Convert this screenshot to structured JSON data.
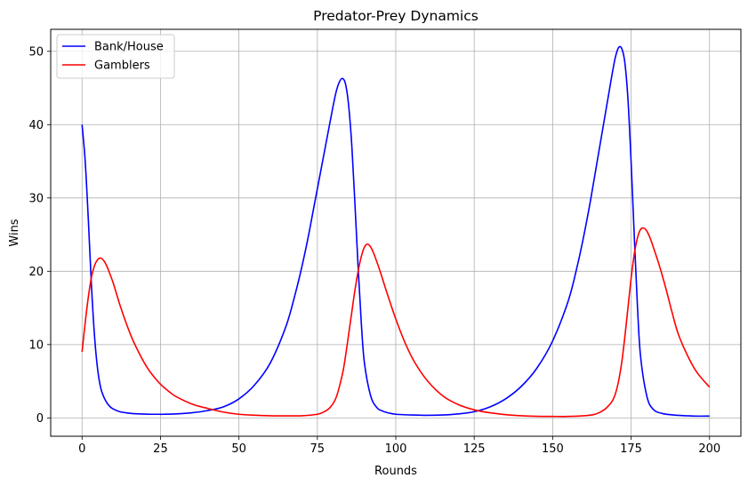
{
  "chart_data": {
    "type": "line",
    "title": "Predator-Prey Dynamics",
    "xlabel": "Rounds",
    "ylabel": "Wins",
    "xlim": [
      -10,
      210
    ],
    "ylim": [
      -2.5,
      53
    ],
    "xticks": [
      0,
      25,
      50,
      75,
      100,
      125,
      150,
      175,
      200
    ],
    "yticks": [
      0,
      10,
      20,
      30,
      40,
      50
    ],
    "grid": true,
    "legend_position": "top-left",
    "series": [
      {
        "name": "Bank/House",
        "color": "#0000ff",
        "x": [
          0,
          1,
          2,
          3,
          4,
          5,
          6,
          7,
          8,
          9,
          10,
          12,
          14,
          16,
          18,
          20,
          22,
          24,
          26,
          30,
          35,
          40,
          45,
          50,
          55,
          60,
          65,
          68,
          70,
          72,
          74,
          76,
          78,
          80,
          81,
          82,
          83,
          84,
          85,
          86,
          87,
          88,
          89,
          90,
          92,
          94,
          96,
          98,
          100,
          105,
          110,
          115,
          120,
          125,
          130,
          135,
          140,
          145,
          150,
          155,
          158,
          160,
          162,
          164,
          166,
          168,
          169,
          170,
          171,
          172,
          173,
          174,
          175,
          176,
          177,
          178,
          180,
          182,
          185,
          190,
          195,
          200
        ],
        "y": [
          40,
          35,
          27,
          18,
          11,
          6.5,
          4,
          2.8,
          2,
          1.5,
          1.2,
          0.85,
          0.7,
          0.6,
          0.55,
          0.52,
          0.5,
          0.5,
          0.5,
          0.55,
          0.7,
          1.0,
          1.5,
          2.6,
          4.5,
          7.5,
          12.5,
          17,
          20.5,
          24.5,
          29,
          33.5,
          38,
          42.5,
          44.5,
          45.8,
          46.3,
          45.5,
          42.5,
          37,
          29,
          20.5,
          13,
          7.5,
          3,
          1.4,
          0.9,
          0.65,
          0.5,
          0.4,
          0.35,
          0.4,
          0.55,
          0.85,
          1.5,
          2.6,
          4.3,
          6.8,
          10.5,
          16,
          21,
          25,
          29.5,
          34.5,
          39.5,
          44.5,
          47,
          49.2,
          50.5,
          50.4,
          48.5,
          43.5,
          35,
          25,
          15.5,
          8.5,
          3,
          1.2,
          0.6,
          0.35,
          0.25,
          0.25
        ]
      },
      {
        "name": "Gamblers",
        "color": "#ff0000",
        "x": [
          0,
          1,
          2,
          3,
          4,
          5,
          6,
          7,
          8,
          9,
          10,
          12,
          14,
          16,
          18,
          20,
          22,
          25,
          28,
          30,
          35,
          40,
          45,
          50,
          55,
          60,
          65,
          70,
          75,
          77,
          79,
          81,
          83,
          84,
          85,
          86,
          87,
          88,
          89,
          90,
          91,
          92,
          93,
          95,
          97,
          100,
          103,
          106,
          110,
          115,
          120,
          125,
          130,
          135,
          140,
          145,
          150,
          155,
          160,
          163,
          165,
          167,
          169,
          170,
          171,
          172,
          173,
          174,
          175,
          176,
          177,
          178,
          179,
          180,
          181,
          182,
          184,
          186,
          188,
          190,
          193,
          196,
          200
        ],
        "y": [
          9,
          13,
          16.5,
          19.2,
          20.8,
          21.6,
          21.8,
          21.4,
          20.6,
          19.5,
          18.3,
          15.5,
          13,
          10.8,
          9,
          7.4,
          6.1,
          4.6,
          3.5,
          2.9,
          1.9,
          1.3,
          0.8,
          0.5,
          0.37,
          0.3,
          0.28,
          0.3,
          0.5,
          0.8,
          1.4,
          2.8,
          6,
          8.5,
          11.5,
          14.5,
          17.5,
          20,
          22,
          23.3,
          23.7,
          23.3,
          22.4,
          20,
          17.3,
          13.5,
          10.2,
          7.6,
          5.1,
          3,
          1.8,
          1.1,
          0.7,
          0.45,
          0.3,
          0.22,
          0.2,
          0.2,
          0.3,
          0.45,
          0.75,
          1.3,
          2.3,
          3.3,
          5,
          7.5,
          11,
          15,
          19,
          22.3,
          24.5,
          25.7,
          25.9,
          25.5,
          24.6,
          23.4,
          20.8,
          17.8,
          14.5,
          11.5,
          8.5,
          6.2,
          4.2
        ]
      }
    ]
  }
}
